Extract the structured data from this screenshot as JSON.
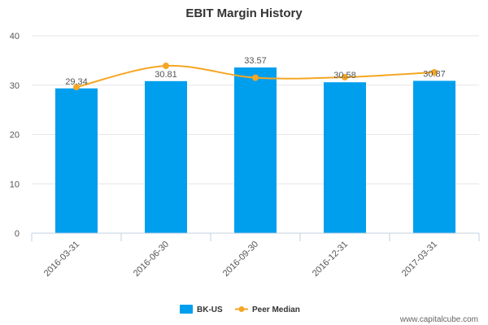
{
  "chart_data": {
    "type": "bar",
    "title": "EBIT Margin History",
    "categories": [
      "2016-03-31",
      "2016-06-30",
      "2016-09-30",
      "2016-12-31",
      "2017-03-31"
    ],
    "series": [
      {
        "name": "BK-US",
        "type": "bar",
        "color": "#009fee",
        "values": [
          29.34,
          30.81,
          33.57,
          30.58,
          30.87
        ],
        "labels": [
          "29.34",
          "30.81",
          "33.57",
          "30.58",
          "30.87"
        ]
      },
      {
        "name": "Peer Median",
        "type": "line",
        "color": "#f5a623",
        "values": [
          29.6,
          33.9,
          31.5,
          31.6,
          32.6
        ]
      }
    ],
    "ylim": [
      0,
      40
    ],
    "yticks": [
      "0",
      "10",
      "20",
      "30",
      "40"
    ],
    "grid": true,
    "legend_position": "bottom-center"
  },
  "watermark": "www.capitalcube.com"
}
